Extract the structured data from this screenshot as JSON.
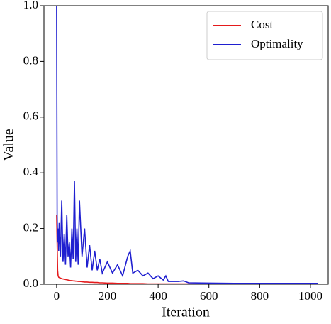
{
  "chart_data": {
    "type": "line",
    "xlabel": "Iteration",
    "ylabel": "Value",
    "x": [
      0,
      2,
      4,
      6,
      8,
      10,
      15,
      20,
      25,
      30,
      35,
      40,
      45,
      50,
      55,
      60,
      65,
      70,
      75,
      80,
      85,
      90,
      100,
      110,
      120,
      130,
      140,
      150,
      160,
      170,
      180,
      200,
      220,
      240,
      260,
      280,
      290,
      300,
      320,
      340,
      360,
      380,
      400,
      420,
      430,
      440,
      460,
      480,
      500,
      520,
      600,
      700,
      800,
      900,
      1000,
      1030
    ],
    "series": [
      {
        "name": "Cost",
        "color": "#e41a1c",
        "values": [
          0.25,
          0.15,
          0.05,
          0.03,
          0.025,
          0.024,
          0.022,
          0.02,
          0.019,
          0.018,
          0.017,
          0.016,
          0.015,
          0.014,
          0.013,
          0.013,
          0.012,
          0.012,
          0.011,
          0.011,
          0.01,
          0.01,
          0.009,
          0.008,
          0.008,
          0.007,
          0.007,
          0.006,
          0.006,
          0.005,
          0.005,
          0.004,
          0.004,
          0.003,
          0.003,
          0.003,
          0.002,
          0.002,
          0.002,
          0.002,
          0.001,
          0.001,
          0.001,
          0.001,
          0.001,
          0.001,
          0.001,
          0.001,
          0.001,
          0.001,
          0.001,
          0.001,
          0.001,
          0.001,
          0.001,
          0.001
        ]
      },
      {
        "name": "Optimality",
        "color": "#1f1fd0",
        "values": [
          1.0,
          0.25,
          0.15,
          0.2,
          0.12,
          0.22,
          0.1,
          0.3,
          0.08,
          0.18,
          0.07,
          0.25,
          0.1,
          0.15,
          0.06,
          0.2,
          0.09,
          0.37,
          0.08,
          0.2,
          0.07,
          0.3,
          0.1,
          0.2,
          0.06,
          0.14,
          0.05,
          0.12,
          0.05,
          0.09,
          0.04,
          0.08,
          0.04,
          0.07,
          0.03,
          0.1,
          0.12,
          0.04,
          0.05,
          0.03,
          0.04,
          0.02,
          0.03,
          0.015,
          0.03,
          0.01,
          0.01,
          0.01,
          0.012,
          0.005,
          0.004,
          0.003,
          0.003,
          0.003,
          0.003,
          0.003
        ]
      }
    ],
    "xlim": [
      -50,
      1070
    ],
    "ylim": [
      0,
      1
    ],
    "xticks": [
      0,
      200,
      400,
      600,
      800,
      1000
    ],
    "yticks": [
      {
        "value": 0,
        "label": "0.0"
      },
      {
        "value": 0.2,
        "label": "0.2"
      },
      {
        "value": 0.4,
        "label": "0.4"
      },
      {
        "value": 0.6,
        "label": "0.6"
      },
      {
        "value": 0.8,
        "label": "0.8"
      },
      {
        "value": 1,
        "label": "1.0"
      }
    ],
    "legend": "upper right",
    "grid": false
  }
}
